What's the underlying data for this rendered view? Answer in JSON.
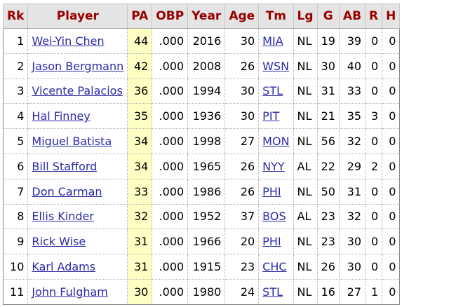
{
  "headers": [
    "Rk",
    "Player",
    "PA",
    "OBP",
    "Year",
    "Age",
    "Tm",
    "Lg",
    "G",
    "AB",
    "R",
    "H"
  ],
  "highlight_color": "#ffffc4",
  "header_text_color": "#990000",
  "link_color": "#2a2aa8",
  "rows": [
    [
      "1",
      "Wei-Yin Chen",
      "44",
      ".000",
      "2016",
      "30",
      "MIA",
      "NL",
      "19",
      "39",
      "0",
      "0"
    ],
    [
      "2",
      "Jason Bergmann",
      "42",
      ".000",
      "2008",
      "26",
      "WSN",
      "NL",
      "30",
      "40",
      "0",
      "0"
    ],
    [
      "3",
      "Vicente Palacios",
      "36",
      ".000",
      "1994",
      "30",
      "STL",
      "NL",
      "31",
      "33",
      "0",
      "0"
    ],
    [
      "4",
      "Hal Finney",
      "35",
      ".000",
      "1936",
      "30",
      "PIT",
      "NL",
      "21",
      "35",
      "3",
      "0"
    ],
    [
      "5",
      "Miguel Batista",
      "34",
      ".000",
      "1998",
      "27",
      "MON",
      "NL",
      "56",
      "32",
      "0",
      "0"
    ],
    [
      "6",
      "Bill Stafford",
      "34",
      ".000",
      "1965",
      "26",
      "NYY",
      "AL",
      "22",
      "29",
      "2",
      "0"
    ],
    [
      "7",
      "Don Carman",
      "33",
      ".000",
      "1986",
      "26",
      "PHI",
      "NL",
      "50",
      "31",
      "0",
      "0"
    ],
    [
      "8",
      "Ellis Kinder",
      "32",
      ".000",
      "1952",
      "37",
      "BOS",
      "AL",
      "23",
      "32",
      "0",
      "0"
    ],
    [
      "9",
      "Rick Wise",
      "31",
      ".000",
      "1966",
      "20",
      "PHI",
      "NL",
      "23",
      "30",
      "0",
      "0"
    ],
    [
      "10",
      "Karl Adams",
      "31",
      ".000",
      "1915",
      "23",
      "CHC",
      "NL",
      "26",
      "30",
      "0",
      "0"
    ],
    [
      "11",
      "John Fulgham",
      "30",
      ".000",
      "1980",
      "24",
      "STL",
      "NL",
      "16",
      "27",
      "1",
      "0"
    ]
  ]
}
